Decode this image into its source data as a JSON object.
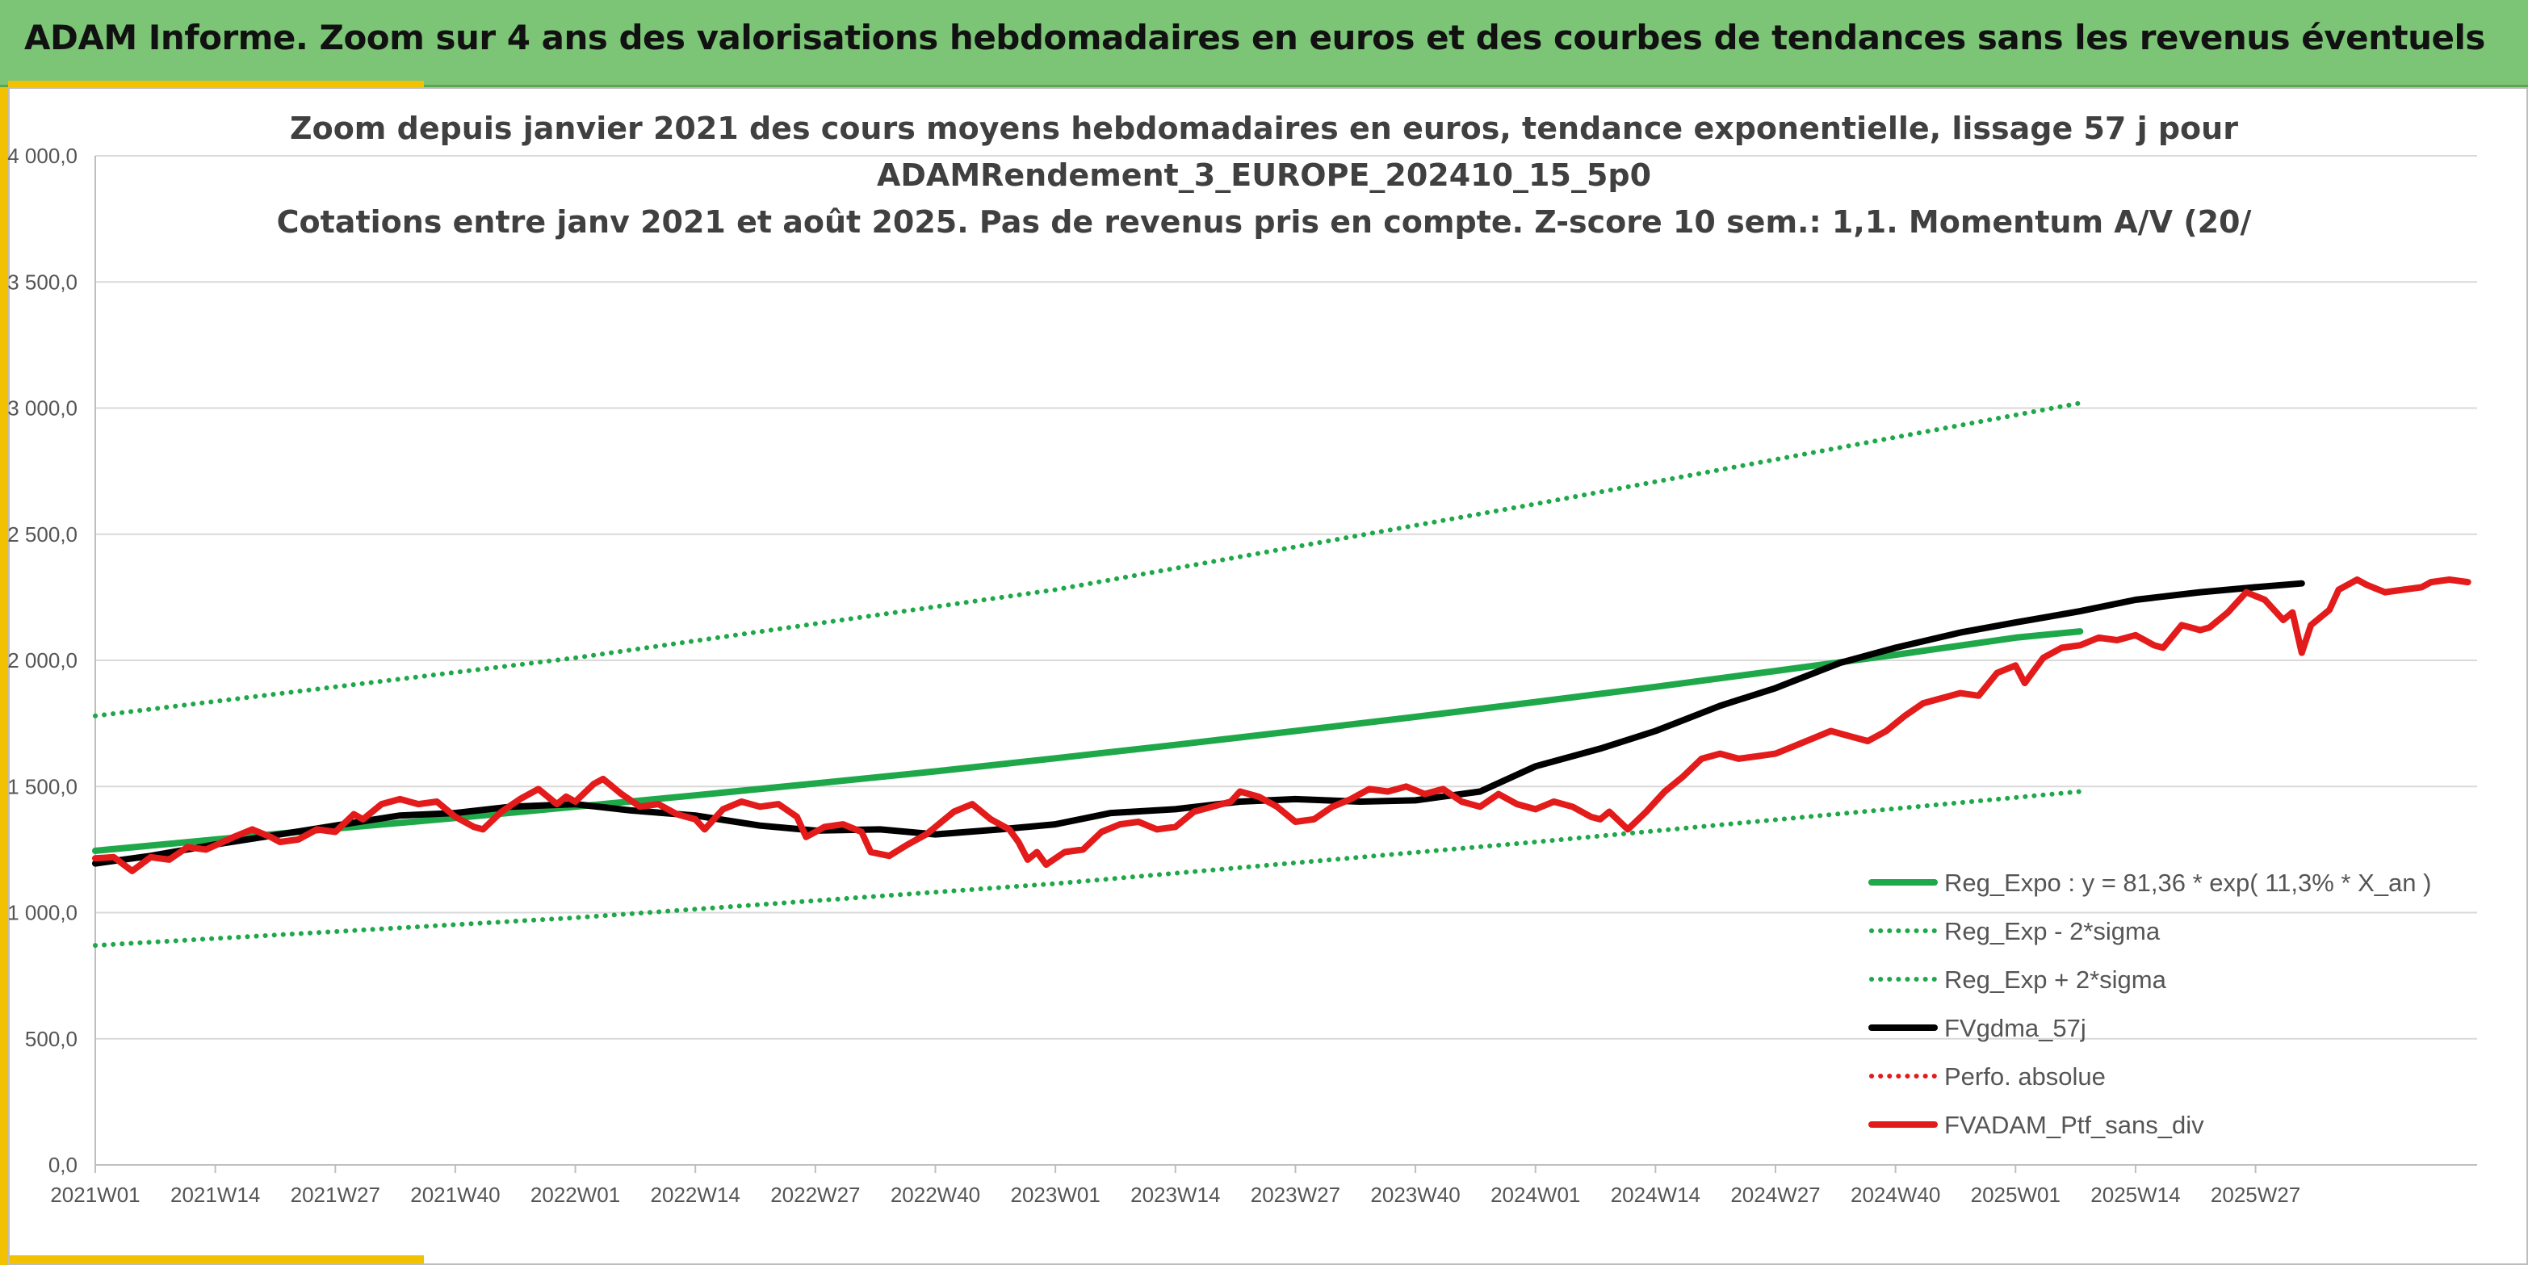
{
  "header": {
    "title": "ADAM Informe. Zoom sur 4 ans des valorisations hebdomadaires en euros et des courbes de tendances sans les revenus éventuels"
  },
  "chart_data": {
    "type": "line",
    "title_lines": [
      "Zoom depuis janvier 2021 des cours moyens hebdomadaires en euros, tendance exponentielle, lissage 57 j pour",
      "ADAMRendement_3_EUROPE_202410_15_5p0",
      "Cotations entre janv 2021 et août 2025. Pas de revenus pris en compte. Z-score 10 sem.: 1,1. Momentum A/V (20/"
    ],
    "ylim": [
      0,
      4000
    ],
    "y_ticks": [
      "0,0",
      "500,0",
      "1 000,0",
      "1 500,0",
      "2 000,0",
      "2 500,0",
      "3 000,0",
      "3 500,0",
      "4 000,0"
    ],
    "x_ticks": [
      "2021W01",
      "2021W14",
      "2021W27",
      "2021W40",
      "2022W01",
      "2022W14",
      "2022W27",
      "2022W40",
      "2023W01",
      "2023W14",
      "2023W27",
      "2023W40",
      "2024W01",
      "2024W14",
      "2024W27",
      "2024W40",
      "2025W01",
      "2025W14",
      "2025W27"
    ],
    "legend_position": "bottom-right",
    "grid": true,
    "series": [
      {
        "name": "Reg_Expo : y = 81,36 * exp( 11,3% *  X_an )",
        "color": "#1fa84a",
        "style": "solid",
        "points": [
          [
            0,
            1245
          ],
          [
            13,
            1290
          ],
          [
            26,
            1333
          ],
          [
            39,
            1375
          ],
          [
            52,
            1420
          ],
          [
            65,
            1465
          ],
          [
            78,
            1512
          ],
          [
            91,
            1560
          ],
          [
            104,
            1612
          ],
          [
            117,
            1665
          ],
          [
            130,
            1720
          ],
          [
            143,
            1776
          ],
          [
            156,
            1835
          ],
          [
            169,
            1895
          ],
          [
            182,
            1958
          ],
          [
            195,
            2022
          ],
          [
            208,
            2090
          ],
          [
            215,
            2115
          ]
        ]
      },
      {
        "name": "Reg_Exp - 2*sigma",
        "color": "#1fa84a",
        "style": "dotted",
        "points": [
          [
            0,
            870
          ],
          [
            52,
            980
          ],
          [
            104,
            1115
          ],
          [
            156,
            1280
          ],
          [
            215,
            1480
          ]
        ]
      },
      {
        "name": "Reg_Exp + 2*sigma",
        "color": "#1fa84a",
        "style": "dotted",
        "points": [
          [
            0,
            1780
          ],
          [
            52,
            2010
          ],
          [
            104,
            2280
          ],
          [
            156,
            2620
          ],
          [
            215,
            3020
          ]
        ]
      },
      {
        "name": "FVgdma_57j",
        "color": "#000000",
        "style": "solid",
        "points": [
          [
            0,
            1195
          ],
          [
            6,
            1225
          ],
          [
            13,
            1270
          ],
          [
            20,
            1310
          ],
          [
            26,
            1345
          ],
          [
            33,
            1385
          ],
          [
            39,
            1395
          ],
          [
            45,
            1420
          ],
          [
            52,
            1430
          ],
          [
            58,
            1405
          ],
          [
            65,
            1385
          ],
          [
            72,
            1345
          ],
          [
            78,
            1325
          ],
          [
            85,
            1330
          ],
          [
            91,
            1310
          ],
          [
            98,
            1330
          ],
          [
            104,
            1350
          ],
          [
            110,
            1395
          ],
          [
            117,
            1410
          ],
          [
            124,
            1440
          ],
          [
            130,
            1450
          ],
          [
            137,
            1440
          ],
          [
            143,
            1445
          ],
          [
            150,
            1480
          ],
          [
            156,
            1580
          ],
          [
            163,
            1650
          ],
          [
            169,
            1720
          ],
          [
            176,
            1820
          ],
          [
            182,
            1890
          ],
          [
            189,
            1990
          ],
          [
            195,
            2050
          ],
          [
            202,
            2110
          ],
          [
            208,
            2150
          ],
          [
            215,
            2195
          ],
          [
            221,
            2240
          ],
          [
            228,
            2270
          ],
          [
            234,
            2290
          ],
          [
            239,
            2305
          ]
        ]
      },
      {
        "name": "Perfo. absolue",
        "color": "#e31b1b",
        "style": "dotted",
        "points": []
      },
      {
        "name": "FVADAM_Ptf_sans_div",
        "color": "#e31b1b",
        "style": "solid",
        "points": [
          [
            0,
            1215
          ],
          [
            2,
            1220
          ],
          [
            4,
            1165
          ],
          [
            6,
            1220
          ],
          [
            8,
            1210
          ],
          [
            10,
            1260
          ],
          [
            12,
            1250
          ],
          [
            15,
            1300
          ],
          [
            17,
            1330
          ],
          [
            19,
            1300
          ],
          [
            20,
            1280
          ],
          [
            22,
            1290
          ],
          [
            24,
            1330
          ],
          [
            26,
            1320
          ],
          [
            28,
            1390
          ],
          [
            29,
            1370
          ],
          [
            31,
            1430
          ],
          [
            33,
            1450
          ],
          [
            35,
            1430
          ],
          [
            37,
            1440
          ],
          [
            39,
            1380
          ],
          [
            41,
            1340
          ],
          [
            42,
            1330
          ],
          [
            44,
            1400
          ],
          [
            46,
            1450
          ],
          [
            48,
            1490
          ],
          [
            50,
            1430
          ],
          [
            51,
            1460
          ],
          [
            52,
            1440
          ],
          [
            54,
            1510
          ],
          [
            55,
            1530
          ],
          [
            57,
            1470
          ],
          [
            59,
            1420
          ],
          [
            61,
            1430
          ],
          [
            63,
            1390
          ],
          [
            65,
            1370
          ],
          [
            66,
            1330
          ],
          [
            68,
            1410
          ],
          [
            70,
            1440
          ],
          [
            72,
            1420
          ],
          [
            74,
            1430
          ],
          [
            76,
            1380
          ],
          [
            77,
            1300
          ],
          [
            79,
            1340
          ],
          [
            81,
            1350
          ],
          [
            83,
            1320
          ],
          [
            84,
            1240
          ],
          [
            86,
            1225
          ],
          [
            88,
            1270
          ],
          [
            90,
            1310
          ],
          [
            91,
            1340
          ],
          [
            93,
            1400
          ],
          [
            95,
            1430
          ],
          [
            97,
            1370
          ],
          [
            99,
            1330
          ],
          [
            100,
            1280
          ],
          [
            101,
            1210
          ],
          [
            102,
            1240
          ],
          [
            103,
            1190
          ],
          [
            105,
            1240
          ],
          [
            107,
            1250
          ],
          [
            109,
            1320
          ],
          [
            111,
            1350
          ],
          [
            113,
            1360
          ],
          [
            115,
            1330
          ],
          [
            117,
            1340
          ],
          [
            119,
            1400
          ],
          [
            121,
            1420
          ],
          [
            123,
            1440
          ],
          [
            124,
            1480
          ],
          [
            126,
            1460
          ],
          [
            128,
            1420
          ],
          [
            130,
            1360
          ],
          [
            132,
            1370
          ],
          [
            134,
            1420
          ],
          [
            136,
            1450
          ],
          [
            138,
            1490
          ],
          [
            140,
            1480
          ],
          [
            142,
            1500
          ],
          [
            144,
            1470
          ],
          [
            146,
            1490
          ],
          [
            148,
            1440
          ],
          [
            150,
            1420
          ],
          [
            152,
            1470
          ],
          [
            154,
            1430
          ],
          [
            156,
            1410
          ],
          [
            158,
            1440
          ],
          [
            160,
            1420
          ],
          [
            162,
            1380
          ],
          [
            163,
            1370
          ],
          [
            164,
            1400
          ],
          [
            166,
            1330
          ],
          [
            168,
            1400
          ],
          [
            170,
            1480
          ],
          [
            172,
            1540
          ],
          [
            174,
            1610
          ],
          [
            176,
            1630
          ],
          [
            178,
            1610
          ],
          [
            180,
            1620
          ],
          [
            182,
            1630
          ],
          [
            184,
            1660
          ],
          [
            186,
            1690
          ],
          [
            188,
            1720
          ],
          [
            190,
            1700
          ],
          [
            192,
            1680
          ],
          [
            194,
            1720
          ],
          [
            196,
            1780
          ],
          [
            198,
            1830
          ],
          [
            200,
            1850
          ],
          [
            202,
            1870
          ],
          [
            204,
            1860
          ],
          [
            206,
            1950
          ],
          [
            208,
            1980
          ],
          [
            209,
            1910
          ],
          [
            211,
            2010
          ],
          [
            213,
            2050
          ],
          [
            215,
            2060
          ],
          [
            217,
            2090
          ],
          [
            219,
            2080
          ],
          [
            221,
            2100
          ],
          [
            223,
            2060
          ],
          [
            224,
            2050
          ],
          [
            226,
            2140
          ],
          [
            228,
            2120
          ],
          [
            229,
            2130
          ],
          [
            231,
            2190
          ],
          [
            233,
            2270
          ],
          [
            235,
            2240
          ],
          [
            237,
            2160
          ],
          [
            238,
            2190
          ],
          [
            239,
            2030
          ],
          [
            240,
            2140
          ],
          [
            242,
            2200
          ],
          [
            243,
            2280
          ],
          [
            245,
            2320
          ],
          [
            246,
            2300
          ],
          [
            248,
            2270
          ],
          [
            250,
            2280
          ],
          [
            252,
            2290
          ],
          [
            253,
            2310
          ],
          [
            255,
            2320
          ],
          [
            257,
            2310
          ]
        ]
      }
    ]
  }
}
